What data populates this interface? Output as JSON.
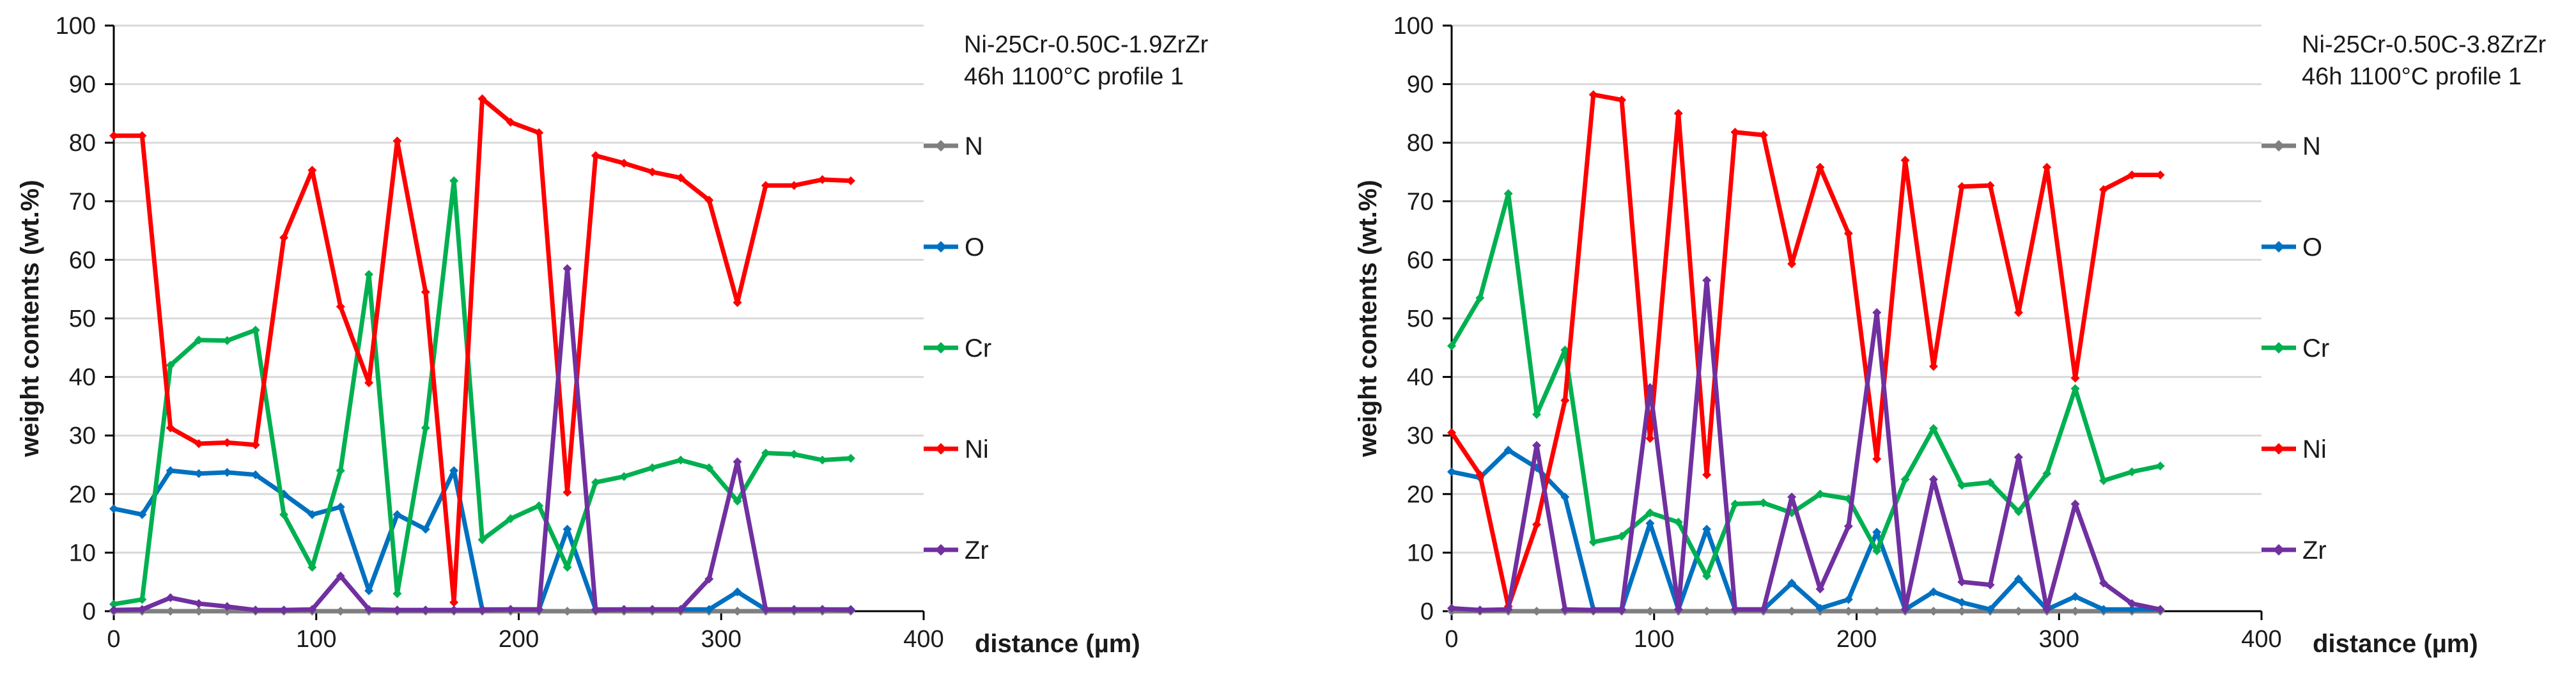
{
  "colors": {
    "N": "#7f7f7f",
    "O": "#0070c0",
    "Cr": "#00b050",
    "Ni": "#ff0000",
    "Zr": "#7030a0",
    "grid": "#d9d9d9",
    "axis": "#000000",
    "text": "#1a1a1a"
  },
  "chart_data": [
    {
      "type": "line",
      "title_lines": [
        "Ni-25Cr-0.50C-1.9ZrZr",
        "46h 1100°C profile 1"
      ],
      "xlabel": "distance (µm)",
      "ylabel": "weight contents (wt.%)",
      "xlim": [
        0,
        400
      ],
      "ylim": [
        0,
        100
      ],
      "xticks": [
        0,
        100,
        200,
        300,
        400
      ],
      "yticks": [
        0,
        10,
        20,
        30,
        40,
        50,
        60,
        70,
        80,
        90,
        100
      ],
      "grid": "horizontal",
      "legend_position": "right",
      "x": [
        0,
        14,
        28,
        42,
        56,
        70,
        84,
        98,
        112,
        126,
        140,
        154,
        168,
        182,
        196,
        210,
        224,
        238,
        252,
        266,
        280,
        294,
        308,
        322,
        336,
        350,
        364
      ],
      "series": [
        {
          "name": "N",
          "values": [
            0,
            0,
            0,
            0,
            0,
            0,
            0,
            0,
            0,
            0,
            0,
            0,
            0,
            0,
            0,
            0,
            0,
            0,
            0,
            0,
            0,
            0,
            0,
            0,
            0,
            0,
            0
          ]
        },
        {
          "name": "O",
          "values": [
            17.5,
            16.5,
            24,
            23.5,
            23.7,
            23.3,
            20,
            16.5,
            17.8,
            3.5,
            16.5,
            14,
            24,
            0.3,
            0.3,
            0.3,
            14,
            0.3,
            0.3,
            0.3,
            0.3,
            0.3,
            3.3,
            0.3,
            0.3,
            0.3,
            0.3
          ]
        },
        {
          "name": "Cr",
          "values": [
            1.2,
            2,
            42,
            46.3,
            46.2,
            48,
            16.5,
            7.5,
            24,
            57.5,
            3,
            31.3,
            73.5,
            12.2,
            15.8,
            18,
            7.5,
            22,
            23,
            24.5,
            25.8,
            24.5,
            18.8,
            27,
            26.8,
            25.8,
            26.1
          ]
        },
        {
          "name": "Ni",
          "values": [
            81.2,
            81.2,
            31.3,
            28.6,
            28.8,
            28.4,
            63.8,
            75.3,
            52,
            39,
            80.3,
            54.5,
            1.5,
            87.5,
            83.5,
            81.7,
            20.3,
            77.8,
            76.5,
            75,
            74,
            70.2,
            52.7,
            72.7,
            72.7,
            73.7,
            73.5
          ]
        },
        {
          "name": "Zr",
          "values": [
            0.2,
            0.3,
            2.3,
            1.3,
            0.8,
            0.2,
            0.2,
            0.3,
            6,
            0.3,
            0.2,
            0.2,
            0.2,
            0.2,
            0.3,
            0.3,
            58.5,
            0.2,
            0.3,
            0.3,
            0.3,
            5.5,
            25.5,
            0.3,
            0.3,
            0.3,
            0.2
          ]
        }
      ]
    },
    {
      "type": "line",
      "title_lines": [
        "Ni-25Cr-0.50C-3.8ZrZr",
        "46h 1100°C profile 1"
      ],
      "xlabel": "distance (µm)",
      "ylabel": "weight contents (wt.%)",
      "xlim": [
        0,
        400
      ],
      "ylim": [
        0,
        100
      ],
      "xticks": [
        0,
        100,
        200,
        300,
        400
      ],
      "yticks": [
        0,
        10,
        20,
        30,
        40,
        50,
        60,
        70,
        80,
        90,
        100
      ],
      "grid": "horizontal",
      "legend_position": "right",
      "x": [
        0,
        14,
        28,
        42,
        56,
        70,
        84,
        98,
        112,
        126,
        140,
        154,
        168,
        182,
        196,
        210,
        224,
        238,
        252,
        266,
        280,
        294,
        308,
        322,
        336,
        350
      ],
      "series": [
        {
          "name": "N",
          "values": [
            0,
            0,
            0,
            0,
            0,
            0,
            0,
            0,
            0,
            0,
            0,
            0,
            0,
            0,
            0,
            0,
            0,
            0,
            0,
            0,
            0,
            0,
            0,
            0,
            0,
            0
          ]
        },
        {
          "name": "O",
          "values": [
            23.8,
            22.8,
            27.5,
            24.5,
            19.5,
            0.3,
            0.3,
            15,
            0.3,
            14,
            0.3,
            0.3,
            4.8,
            0.5,
            2,
            13.5,
            0.3,
            3.3,
            1.5,
            0.3,
            5.5,
            0.3,
            2.5,
            0.3,
            0.3,
            0.3
          ]
        },
        {
          "name": "Cr",
          "values": [
            45.3,
            53.5,
            71.3,
            33.6,
            44.6,
            11.8,
            12.8,
            16.8,
            15.2,
            6,
            18.3,
            18.5,
            16.8,
            20,
            19.2,
            10.3,
            22.5,
            31.2,
            21.5,
            22,
            17,
            23.5,
            38,
            22.3,
            23.8,
            24.8
          ]
        },
        {
          "name": "Ni",
          "values": [
            30.5,
            23.3,
            0.8,
            14.8,
            36,
            88.2,
            87.3,
            29.5,
            85,
            23.3,
            81.8,
            81.3,
            59.3,
            75.8,
            64.5,
            26,
            77,
            41.8,
            72.5,
            72.7,
            51,
            75.8,
            39.8,
            72,
            74.5,
            74.5
          ]
        },
        {
          "name": "Zr",
          "values": [
            0.5,
            0.2,
            0.3,
            28.3,
            0.3,
            0.2,
            0.2,
            38.2,
            0.3,
            56.5,
            0.3,
            0.3,
            19.5,
            3.8,
            14.5,
            51,
            0.3,
            22.5,
            5,
            4.5,
            26.3,
            0.3,
            18.3,
            4.8,
            1.3,
            0.3
          ]
        }
      ]
    }
  ]
}
